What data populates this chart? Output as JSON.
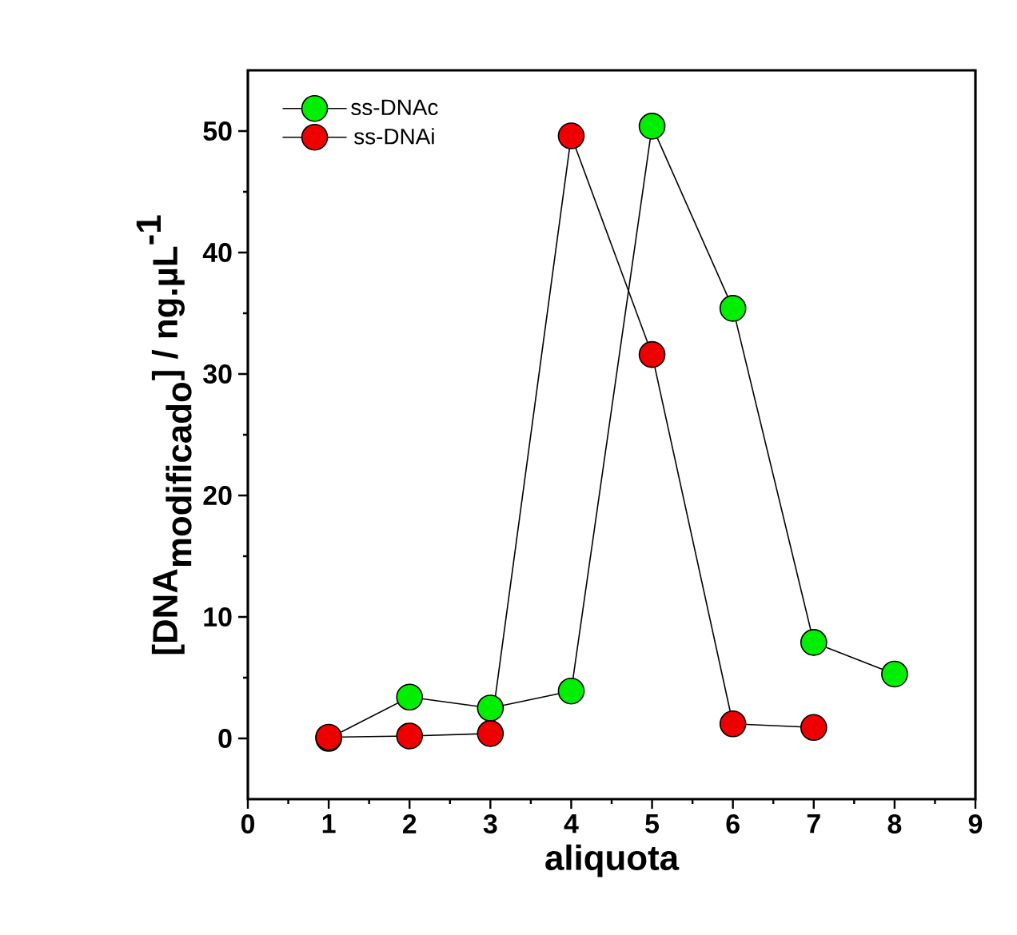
{
  "chart_data": {
    "type": "line",
    "xlabel": "aliquota",
    "ylabel": "\\textbf{[DNA}_{\\textbf{modificado}}\\textbf{] / ng.µL}^{\\textbf{-1}}",
    "x": [
      1,
      2,
      3,
      4,
      5,
      6,
      7,
      8
    ],
    "series": [
      {
        "name": "ss-DNAc",
        "color": "#00ee00",
        "values": [
          0,
          3.4,
          2.5,
          3.9,
          50.4,
          35.4,
          7.9,
          5.3
        ]
      },
      {
        "name": "ss-DNAi",
        "color": "#ee0000",
        "values": [
          0.1,
          0.2,
          0.4,
          49.6,
          31.6,
          1.2,
          0.9,
          null
        ]
      }
    ],
    "xlim": [
      0,
      9
    ],
    "xticks": [
      0,
      1,
      2,
      3,
      4,
      5,
      6,
      7,
      8,
      9
    ],
    "ylim": [
      -5,
      55
    ],
    "yticks": [
      0,
      10,
      20,
      30,
      40,
      50
    ],
    "legend": "top left",
    "marker": "circle",
    "line_style": "solid",
    "grid": false
  }
}
